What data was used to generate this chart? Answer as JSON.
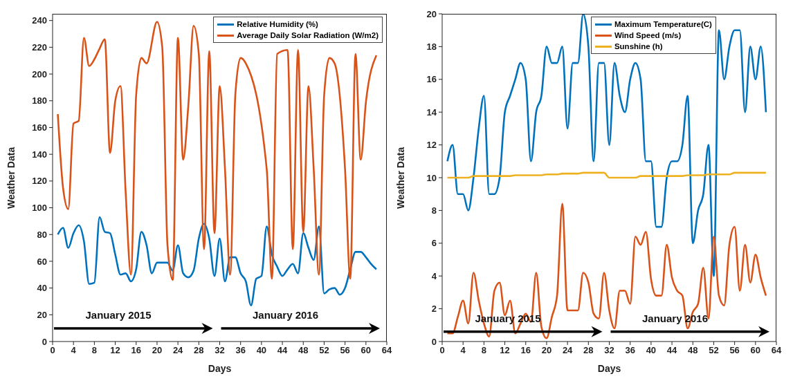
{
  "chart_data": [
    {
      "type": "line",
      "xlabel": "Days",
      "ylabel": "Weather Data",
      "x": [
        1,
        2,
        3,
        4,
        5,
        6,
        7,
        8,
        9,
        10,
        11,
        12,
        13,
        14,
        15,
        16,
        17,
        18,
        19,
        20,
        21,
        22,
        23,
        24,
        25,
        26,
        27,
        28,
        29,
        30,
        31,
        32,
        33,
        34,
        35,
        36,
        37,
        38,
        39,
        40,
        41,
        42,
        43,
        44,
        45,
        46,
        47,
        48,
        49,
        50,
        51,
        52,
        53,
        54,
        55,
        56,
        57,
        58,
        59,
        60,
        61,
        62
      ],
      "series": [
        {
          "name": "Relative Humidity (%)",
          "color": "#0072bd",
          "values": [
            80,
            85,
            70,
            81,
            87,
            75,
            43,
            44,
            93,
            82,
            81,
            65,
            50,
            51,
            45,
            54,
            82,
            72,
            51,
            59,
            59,
            59,
            53,
            72,
            51,
            48,
            53,
            77,
            88,
            77,
            49,
            77,
            45,
            63,
            63,
            51,
            45,
            27,
            47,
            49,
            86,
            65,
            56,
            49,
            54,
            58,
            51,
            81,
            70,
            61,
            86,
            36,
            39,
            40,
            35,
            40,
            54,
            67,
            67,
            63,
            58,
            54
          ]
        },
        {
          "name": "Average Daily Solar Radiation (W/m2)",
          "color": "#d95319",
          "values": [
            170,
            115,
            99,
            163,
            165,
            227,
            206,
            211,
            219,
            226,
            141,
            180,
            191,
            111,
            50,
            184,
            212,
            208,
            null,
            239,
            220,
            72,
            46,
            227,
            136,
            177,
            236,
            215,
            69,
            217,
            81,
            191,
            130,
            50,
            185,
            212,
            208,
            null,
            null,
            null,
            129,
            47,
            215,
            null,
            218,
            69,
            218,
            82,
            191,
            129,
            50,
            184,
            212,
            208,
            null,
            129,
            47,
            215,
            136,
            179,
            null,
            214
          ]
        }
      ],
      "xlim": [
        0,
        64
      ],
      "xticks": [
        0,
        4,
        8,
        12,
        16,
        20,
        24,
        28,
        32,
        36,
        40,
        44,
        48,
        52,
        56,
        60,
        64
      ],
      "ylim": [
        0,
        245
      ],
      "yticks": [
        0,
        20,
        40,
        60,
        80,
        100,
        120,
        140,
        160,
        180,
        200,
        220,
        240
      ],
      "legend": "top right",
      "grid": false,
      "marker": "none",
      "line_style": "solid",
      "annotations": [
        "January 2015",
        "January 2016"
      ]
    },
    {
      "type": "line",
      "xlabel": "Days",
      "ylabel": "Weather Data",
      "x": [
        1,
        2,
        3,
        4,
        5,
        6,
        7,
        8,
        9,
        10,
        11,
        12,
        13,
        14,
        15,
        16,
        17,
        18,
        19,
        20,
        21,
        22,
        23,
        24,
        25,
        26,
        27,
        28,
        29,
        30,
        31,
        32,
        33,
        34,
        35,
        36,
        37,
        38,
        39,
        40,
        41,
        42,
        43,
        44,
        45,
        46,
        47,
        48,
        49,
        50,
        51,
        52,
        53,
        54,
        55,
        56,
        57,
        58,
        59,
        60,
        61,
        62
      ],
      "series": [
        {
          "name": "Maximum Temperature(C)",
          "color": "#0072bd",
          "values": [
            11,
            12,
            9,
            9,
            8,
            10,
            13,
            15,
            9,
            9,
            10,
            14,
            15,
            16,
            17,
            16,
            11,
            14,
            15,
            18,
            17,
            17,
            18,
            13,
            17,
            17,
            20,
            18,
            11,
            17,
            17,
            12,
            17,
            15,
            14,
            16,
            17,
            16,
            11,
            11,
            7,
            7,
            10,
            11,
            11,
            12,
            15,
            6,
            8,
            9,
            12,
            4,
            19,
            16,
            18,
            19,
            19,
            14,
            18,
            16,
            18,
            14
          ]
        },
        {
          "name": "Wind Speed (m/s)",
          "color": "#d95319",
          "values": [
            0.5,
            0.5,
            1.5,
            2.5,
            1.1,
            4.2,
            2.5,
            1.1,
            0.3,
            3.1,
            3.6,
            1.6,
            2.5,
            0.5,
            1.1,
            1.7,
            1.2,
            4.2,
            0.9,
            0.2,
            1.5,
            2.8,
            8.4,
            1.9,
            1.9,
            1.9,
            4.2,
            3.6,
            1.7,
            1.4,
            4.2,
            1.9,
            0.8,
            3.1,
            3.1,
            2.3,
            6.4,
            5.9,
            6.7,
            3.8,
            2.8,
            2.8,
            5.9,
            3.9,
            3.1,
            2.8,
            0.8,
            1.8,
            2.3,
            4.5,
            1.4,
            6.4,
            2.8,
            2.2,
            5.9,
            7,
            3.1,
            5.9,
            3.6,
            5.3,
            3.9,
            2.8
          ]
        },
        {
          "name": "Sunshine (h)",
          "color": "#edb120",
          "values": [
            10,
            10,
            10,
            10,
            10,
            10.1,
            10.1,
            10.1,
            10.1,
            10.1,
            10.1,
            10.1,
            10.1,
            10.15,
            10.15,
            10.15,
            10.15,
            10.15,
            10.15,
            10.2,
            10.2,
            10.2,
            10.25,
            10.25,
            10.25,
            10.25,
            10.3,
            10.3,
            10.3,
            10.3,
            10.3,
            10,
            10,
            10,
            10,
            10,
            10,
            10.1,
            10.1,
            10.1,
            10.1,
            10.1,
            10.1,
            10.1,
            10.1,
            10.1,
            10.15,
            10.15,
            10.15,
            10.15,
            10.2,
            10.2,
            10.2,
            10.2,
            10.2,
            10.3,
            10.3,
            10.3,
            10.3,
            10.3,
            10.3,
            10.3
          ]
        }
      ],
      "xlim": [
        0,
        64
      ],
      "xticks": [
        0,
        4,
        8,
        12,
        16,
        20,
        24,
        28,
        32,
        36,
        40,
        44,
        48,
        52,
        56,
        60,
        64
      ],
      "ylim": [
        0,
        20
      ],
      "yticks": [
        0,
        2,
        4,
        6,
        8,
        10,
        12,
        14,
        16,
        18,
        20
      ],
      "legend": "top",
      "grid": false,
      "marker": "none",
      "line_style": "solid",
      "annotations": [
        "January 2015",
        "January 2016"
      ]
    }
  ]
}
